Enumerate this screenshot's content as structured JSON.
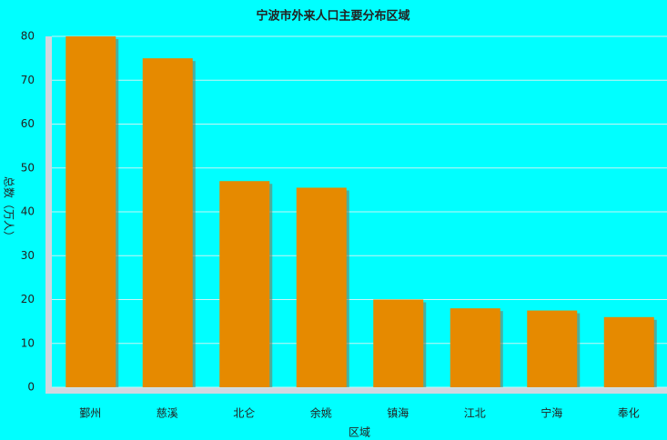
{
  "chart_data": {
    "type": "bar",
    "title": "宁波市外来人口主要分布区域",
    "x_label": "区域",
    "y_label": "总数（万人）",
    "categories": [
      "鄞州",
      "慈溪",
      "北仑",
      "余姚",
      "镇海",
      "江北",
      "宁海",
      "奉化"
    ],
    "values": [
      80,
      75,
      47,
      45.5,
      20,
      18,
      17.5,
      16
    ],
    "color": "#e68a00",
    "ylim": [
      0,
      80
    ],
    "yticks": [
      0,
      10,
      20,
      30,
      40,
      50,
      60,
      70,
      80
    ],
    "grid": true
  }
}
